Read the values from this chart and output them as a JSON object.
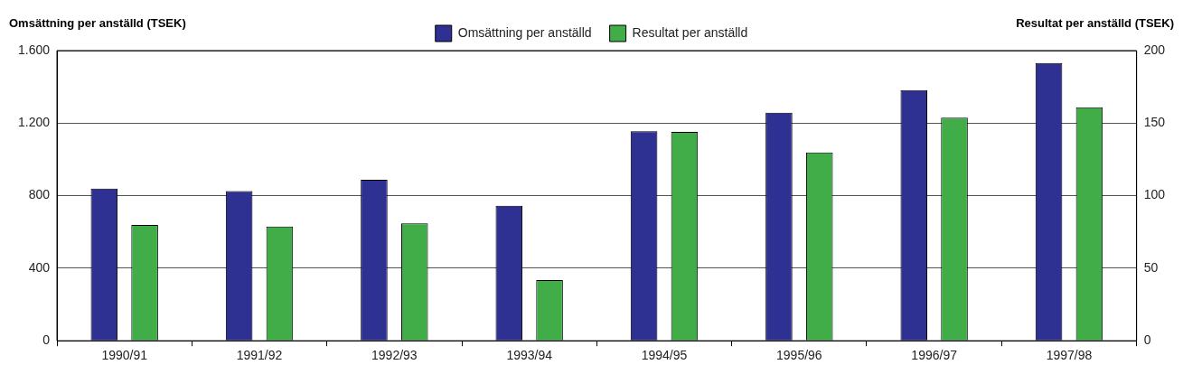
{
  "chart_data": {
    "type": "bar",
    "ylabel": "Omsättning per anställd (TSEK)",
    "y2label": "Resultat per anställd (TSEK)",
    "categories": [
      "1990/91",
      "1991/92",
      "1992/93",
      "1993/94",
      "1994/95",
      "1995/96",
      "1996/97",
      "1997/98"
    ],
    "series": [
      {
        "name": "Omsättning per anställd",
        "color": "#2e3192",
        "values": [
          839,
          826,
          888,
          745,
          1155,
          1257,
          1382,
          1531
        ]
      },
      {
        "name": "Resultat per anställd",
        "color": "#41ad49",
        "axis": "y2",
        "values": [
          79.8,
          78.8,
          80.9,
          41.8,
          143.9,
          129.8,
          153.8,
          161
        ]
      }
    ],
    "ylim": [
      0,
      1600
    ],
    "yticks": [
      {
        "value": 0,
        "label": "0"
      },
      {
        "value": 400,
        "label": "400"
      },
      {
        "value": 800,
        "label": "800"
      },
      {
        "value": 1200,
        "label": "1.200"
      },
      {
        "value": 1600,
        "label": "1.600"
      }
    ],
    "y2lim": [
      0,
      200
    ],
    "y2ticks": [
      0,
      50,
      100,
      150,
      200
    ],
    "grid": "y",
    "legend": "top"
  }
}
